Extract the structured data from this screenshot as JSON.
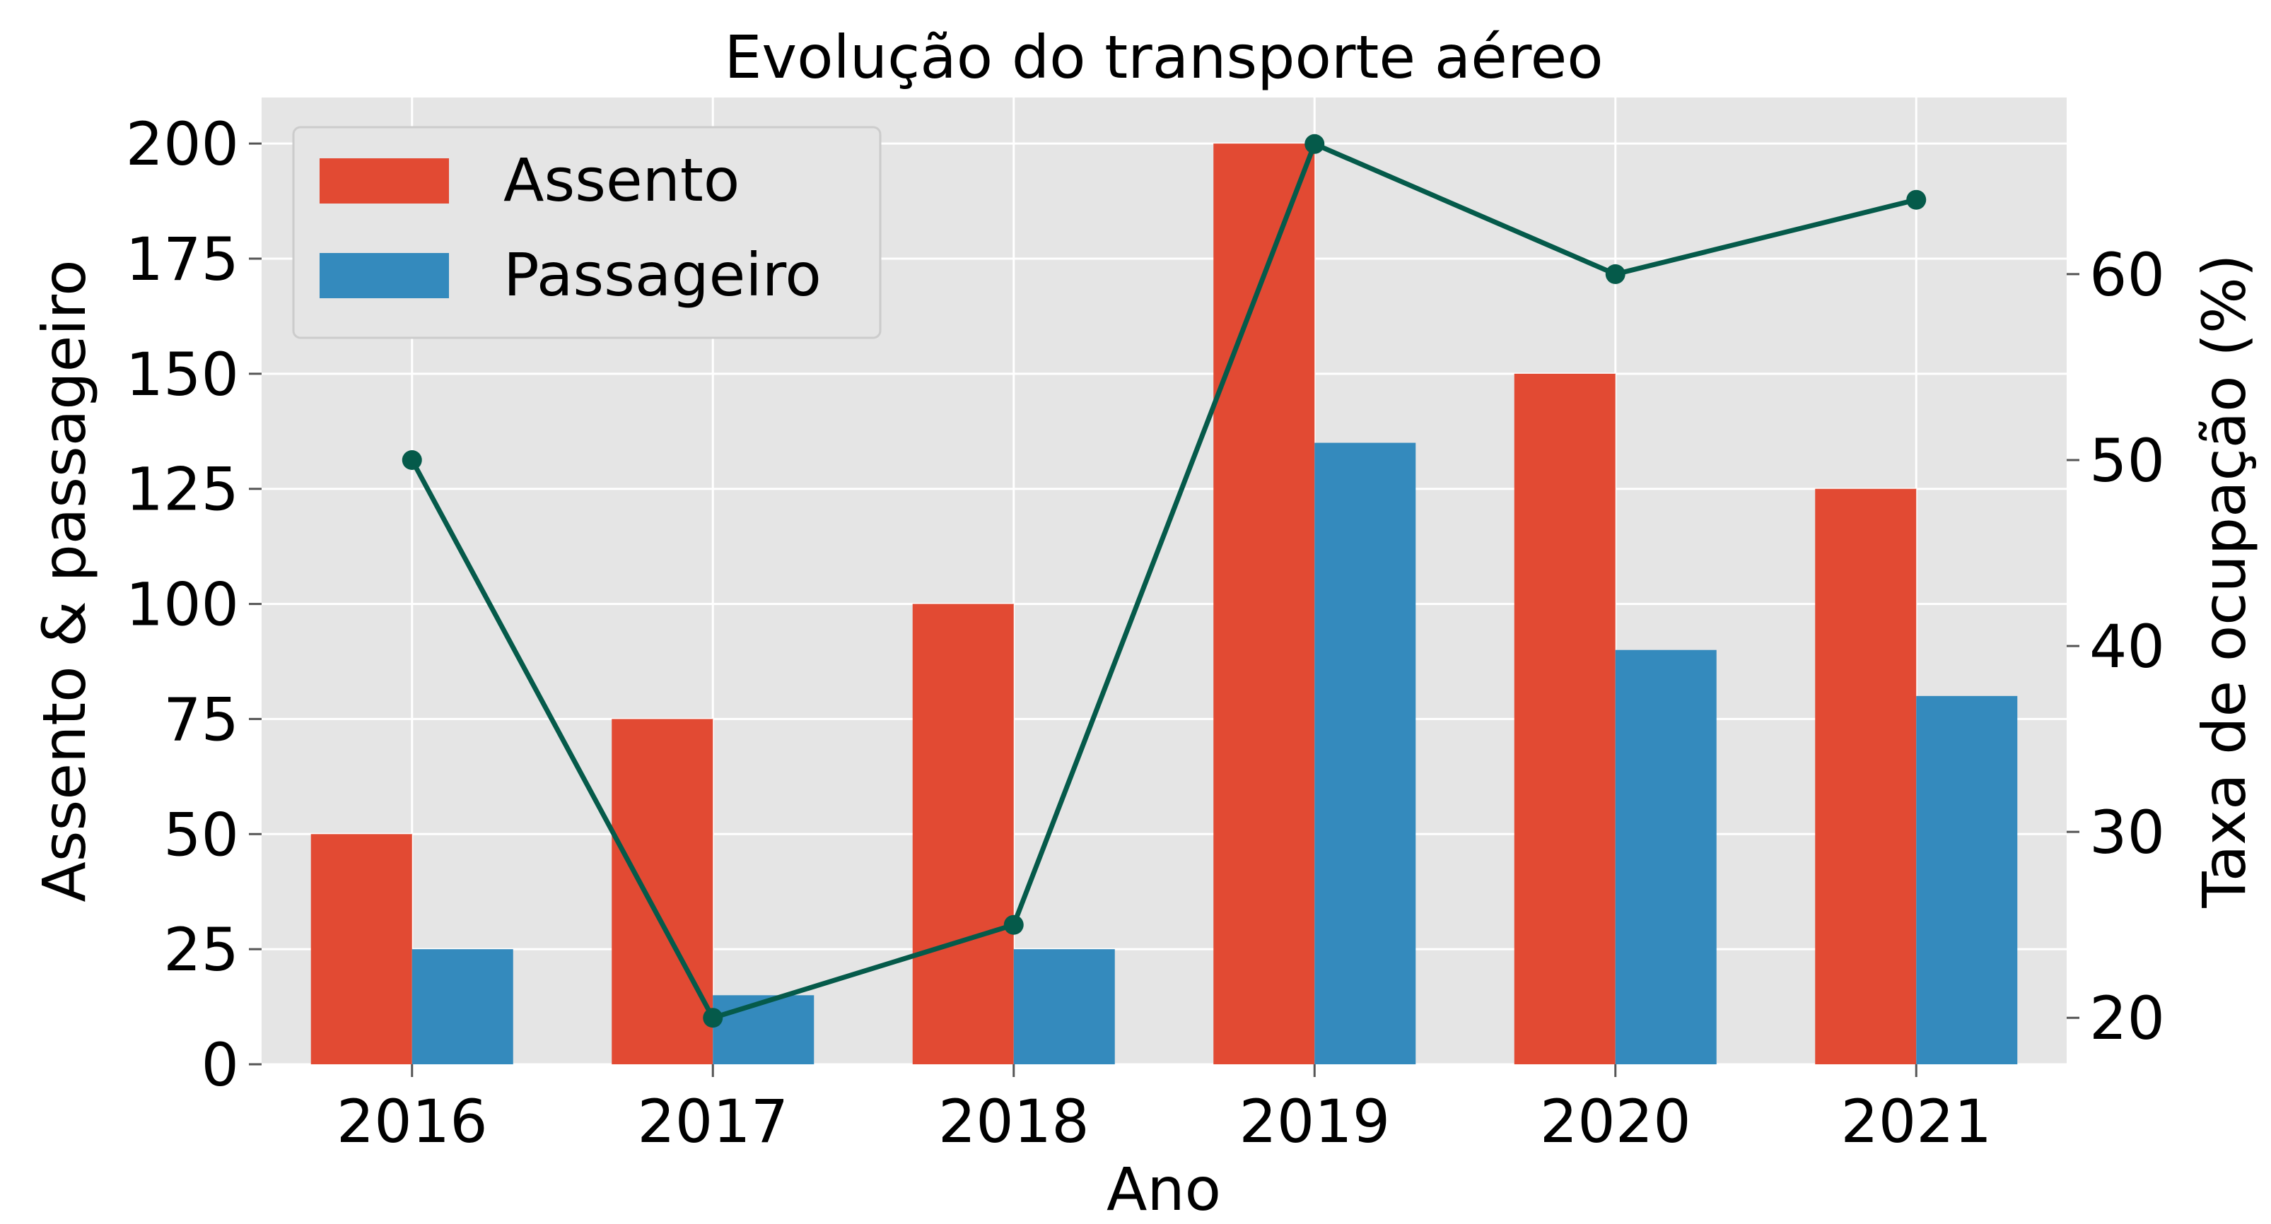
{
  "chart_data": {
    "type": "bar+line",
    "title": "Evolução do transporte aéreo",
    "xlabel": "Ano",
    "ylabel": "Assento & passageiro",
    "y2label": "Taxa de ocupação (%)",
    "categories": [
      "2016",
      "2017",
      "2018",
      "2019",
      "2020",
      "2021"
    ],
    "ylim": [
      0,
      210
    ],
    "y2lim": [
      17.5,
      69.5
    ],
    "yticks": [
      0,
      25,
      50,
      75,
      100,
      125,
      150,
      175,
      200
    ],
    "y2ticks": [
      20,
      30,
      40,
      50,
      60
    ],
    "series": [
      {
        "name": "Assento",
        "type": "bar",
        "axis": "left",
        "color": "#E24A33",
        "values": [
          50,
          75,
          100,
          200,
          150,
          125
        ]
      },
      {
        "name": "Passageiro",
        "type": "bar",
        "axis": "left",
        "color": "#348ABD",
        "values": [
          25,
          15,
          25,
          135,
          90,
          80
        ]
      },
      {
        "type": "line",
        "axis": "right",
        "color": "#055A4A",
        "values": [
          50,
          20,
          25,
          67,
          60,
          64
        ]
      }
    ],
    "grid": true,
    "legend": "top-left"
  }
}
